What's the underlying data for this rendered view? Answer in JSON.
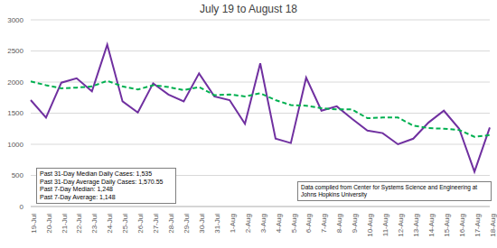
{
  "chart_data": {
    "type": "line",
    "title": "July 19 to August 18",
    "categories": [
      "19-Jul",
      "20-Jul",
      "21-Jul",
      "22-Jul",
      "23-Jul",
      "24-Jul",
      "25-Jul",
      "26-Jul",
      "27-Jul",
      "28-Jul",
      "29-Jul",
      "30-Jul",
      "31-Jul",
      "1-Aug",
      "2-Aug",
      "3-Aug",
      "4-Aug",
      "5-Aug",
      "6-Aug",
      "7-Aug",
      "8-Aug",
      "9-Aug",
      "10-Aug",
      "11-Aug",
      "12-Aug",
      "13-Aug",
      "14-Aug",
      "15-Aug",
      "16-Aug",
      "17-Aug",
      "18-Aug"
    ],
    "series": [
      {
        "color": "#7030a0",
        "line_style": "solid",
        "values": [
          1710,
          1430,
          1990,
          2060,
          1850,
          2600,
          1690,
          1510,
          1980,
          1800,
          1690,
          2140,
          1770,
          1710,
          1330,
          2300,
          1090,
          1020,
          2070,
          1540,
          1610,
          1410,
          1220,
          1180,
          1000,
          1090,
          1350,
          1540,
          1250,
          560,
          1270
        ]
      },
      {
        "color": "#00b050",
        "line_style": "dashed",
        "values": [
          2010,
          1950,
          1900,
          1910,
          1930,
          2020,
          1930,
          1880,
          1950,
          1920,
          1870,
          1920,
          1790,
          1800,
          1770,
          1820,
          1710,
          1630,
          1620,
          1580,
          1560,
          1560,
          1420,
          1430,
          1430,
          1300,
          1260,
          1250,
          1230,
          1120,
          1148
        ]
      }
    ],
    "ylim": [
      0,
      3000
    ],
    "yticks": [
      0,
      500,
      1000,
      1500,
      2000,
      2500,
      3000
    ],
    "grid": true,
    "stats_box": [
      "Past 31-Day Median Daily Cases: 1,535",
      "Past 31-Day Average Daily Cases: 1,570.55",
      "Past 7-Day Median: 1,248",
      "Past 7-Day Average: 1,148"
    ],
    "source_note": "Data compiled from Center for Systems Science and Engineering at Johns Hopkins University"
  }
}
